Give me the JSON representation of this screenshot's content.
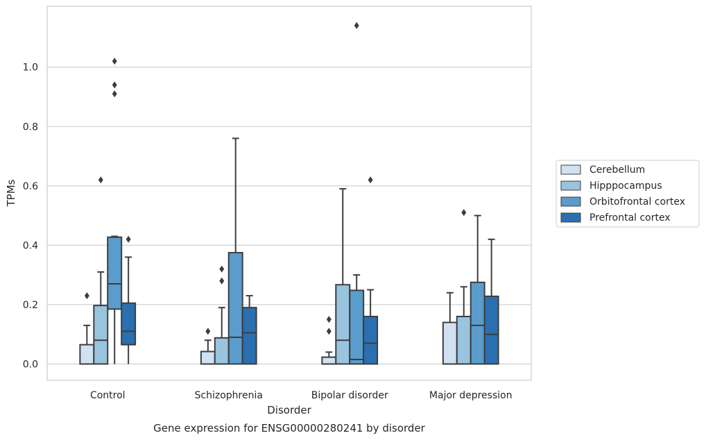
{
  "chart_data": {
    "type": "box",
    "xlabel": "Disorder",
    "ylabel": "TPMs",
    "caption": "Gene expression for ENSG00000280241 by disorder",
    "ylim": [
      -0.055,
      1.205
    ],
    "yticks": [
      0.0,
      0.2,
      0.4,
      0.6,
      0.8,
      1.0
    ],
    "ytick_labels": [
      "0.0",
      "0.2",
      "0.4",
      "0.6",
      "0.8",
      "1.0"
    ],
    "grid": true,
    "legend_position": "right",
    "categories": [
      "Control",
      "Schizophrenia",
      "Bipolar disorder",
      "Major depression"
    ],
    "series": [
      {
        "name": "Cerebellum",
        "color": "#d0e1f2",
        "boxes": [
          {
            "q1": 0.0,
            "median": 0.0,
            "q3": 0.065,
            "whisker_low": 0.0,
            "whisker_high": 0.13,
            "outliers": [
              0.23
            ]
          },
          {
            "q1": 0.0,
            "median": 0.0,
            "q3": 0.042,
            "whisker_low": 0.0,
            "whisker_high": 0.08,
            "outliers": [
              0.11
            ]
          },
          {
            "q1": 0.0,
            "median": 0.0,
            "q3": 0.023,
            "whisker_low": 0.0,
            "whisker_high": 0.04,
            "outliers": [
              0.11,
              0.15
            ]
          },
          {
            "q1": 0.0,
            "median": 0.0,
            "q3": 0.14,
            "whisker_low": 0.0,
            "whisker_high": 0.24,
            "outliers": []
          }
        ]
      },
      {
        "name": "Hipppocampus",
        "color": "#99c4dd",
        "boxes": [
          {
            "q1": 0.0,
            "median": 0.08,
            "q3": 0.197,
            "whisker_low": 0.0,
            "whisker_high": 0.31,
            "outliers": [
              0.62
            ]
          },
          {
            "q1": 0.0,
            "median": 0.0,
            "q3": 0.088,
            "whisker_low": 0.0,
            "whisker_high": 0.19,
            "outliers": [
              0.28,
              0.32
            ]
          },
          {
            "q1": 0.0,
            "median": 0.08,
            "q3": 0.267,
            "whisker_low": 0.0,
            "whisker_high": 0.59,
            "outliers": []
          },
          {
            "q1": 0.0,
            "median": 0.0,
            "q3": 0.16,
            "whisker_low": 0.0,
            "whisker_high": 0.26,
            "outliers": [
              0.51
            ]
          }
        ]
      },
      {
        "name": "Orbitofrontal cortex",
        "color": "#5a9ccc",
        "boxes": [
          {
            "q1": 0.185,
            "median": 0.27,
            "q3": 0.427,
            "whisker_low": 0.0,
            "whisker_high": 0.43,
            "outliers": [
              0.91,
              0.94,
              1.02
            ]
          },
          {
            "q1": 0.0,
            "median": 0.09,
            "q3": 0.375,
            "whisker_low": 0.0,
            "whisker_high": 0.76,
            "outliers": []
          },
          {
            "q1": 0.0,
            "median": 0.015,
            "q3": 0.248,
            "whisker_low": 0.0,
            "whisker_high": 0.3,
            "outliers": [
              1.14
            ]
          },
          {
            "q1": 0.0,
            "median": 0.13,
            "q3": 0.275,
            "whisker_low": 0.0,
            "whisker_high": 0.5,
            "outliers": []
          }
        ]
      },
      {
        "name": "Prefrontal cortex",
        "color": "#2a6fb0",
        "boxes": [
          {
            "q1": 0.065,
            "median": 0.11,
            "q3": 0.205,
            "whisker_low": 0.0,
            "whisker_high": 0.36,
            "outliers": [
              0.42
            ]
          },
          {
            "q1": 0.0,
            "median": 0.105,
            "q3": 0.19,
            "whisker_low": 0.0,
            "whisker_high": 0.23,
            "outliers": []
          },
          {
            "q1": 0.0,
            "median": 0.07,
            "q3": 0.16,
            "whisker_low": 0.0,
            "whisker_high": 0.25,
            "outliers": [
              0.62
            ]
          },
          {
            "q1": 0.0,
            "median": 0.1,
            "q3": 0.228,
            "whisker_low": 0.0,
            "whisker_high": 0.42,
            "outliers": []
          }
        ]
      }
    ]
  }
}
